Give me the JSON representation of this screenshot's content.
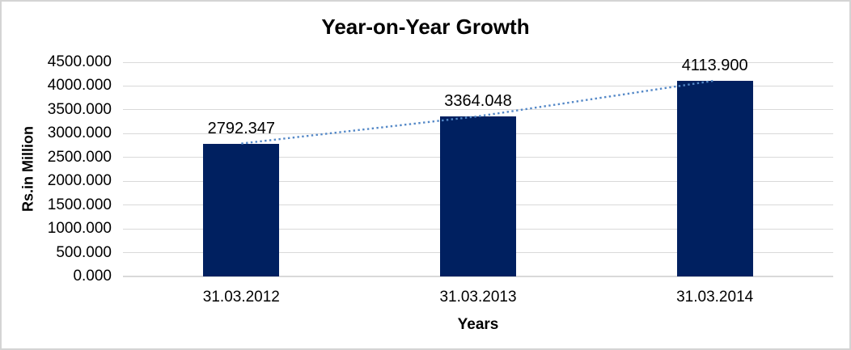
{
  "chart_data": {
    "type": "bar",
    "title": "Year-on-Year Growth",
    "xlabel": "Years",
    "ylabel": "Rs.in Million",
    "categories": [
      "31.03.2012",
      "31.03.2013",
      "31.03.2014"
    ],
    "series": [
      {
        "name": "bars",
        "type": "bar",
        "values": [
          2792.347,
          3364.048,
          4113.9
        ]
      },
      {
        "name": "trendline",
        "type": "dotted-line",
        "values": [
          2792.347,
          3364.048,
          4113.9
        ]
      }
    ],
    "data_labels": [
      "2792.347",
      "3364.048",
      "4113.900"
    ],
    "ylim": [
      0,
      4500
    ],
    "ytick_step": 500,
    "ytick_labels": [
      "0.000",
      "500.000",
      "1000.000",
      "1500.000",
      "2000.000",
      "2500.000",
      "3000.000",
      "3500.000",
      "4000.000",
      "4500.000"
    ],
    "grid": true,
    "legend": "none",
    "colors": {
      "bar": "#002060",
      "trendline": "#5488c7",
      "gridline": "#d9d9d9",
      "axis_line": "#d9d9d9",
      "text": "#000000",
      "chart_border": "#d4d4d4",
      "background": "#ffffff"
    }
  }
}
